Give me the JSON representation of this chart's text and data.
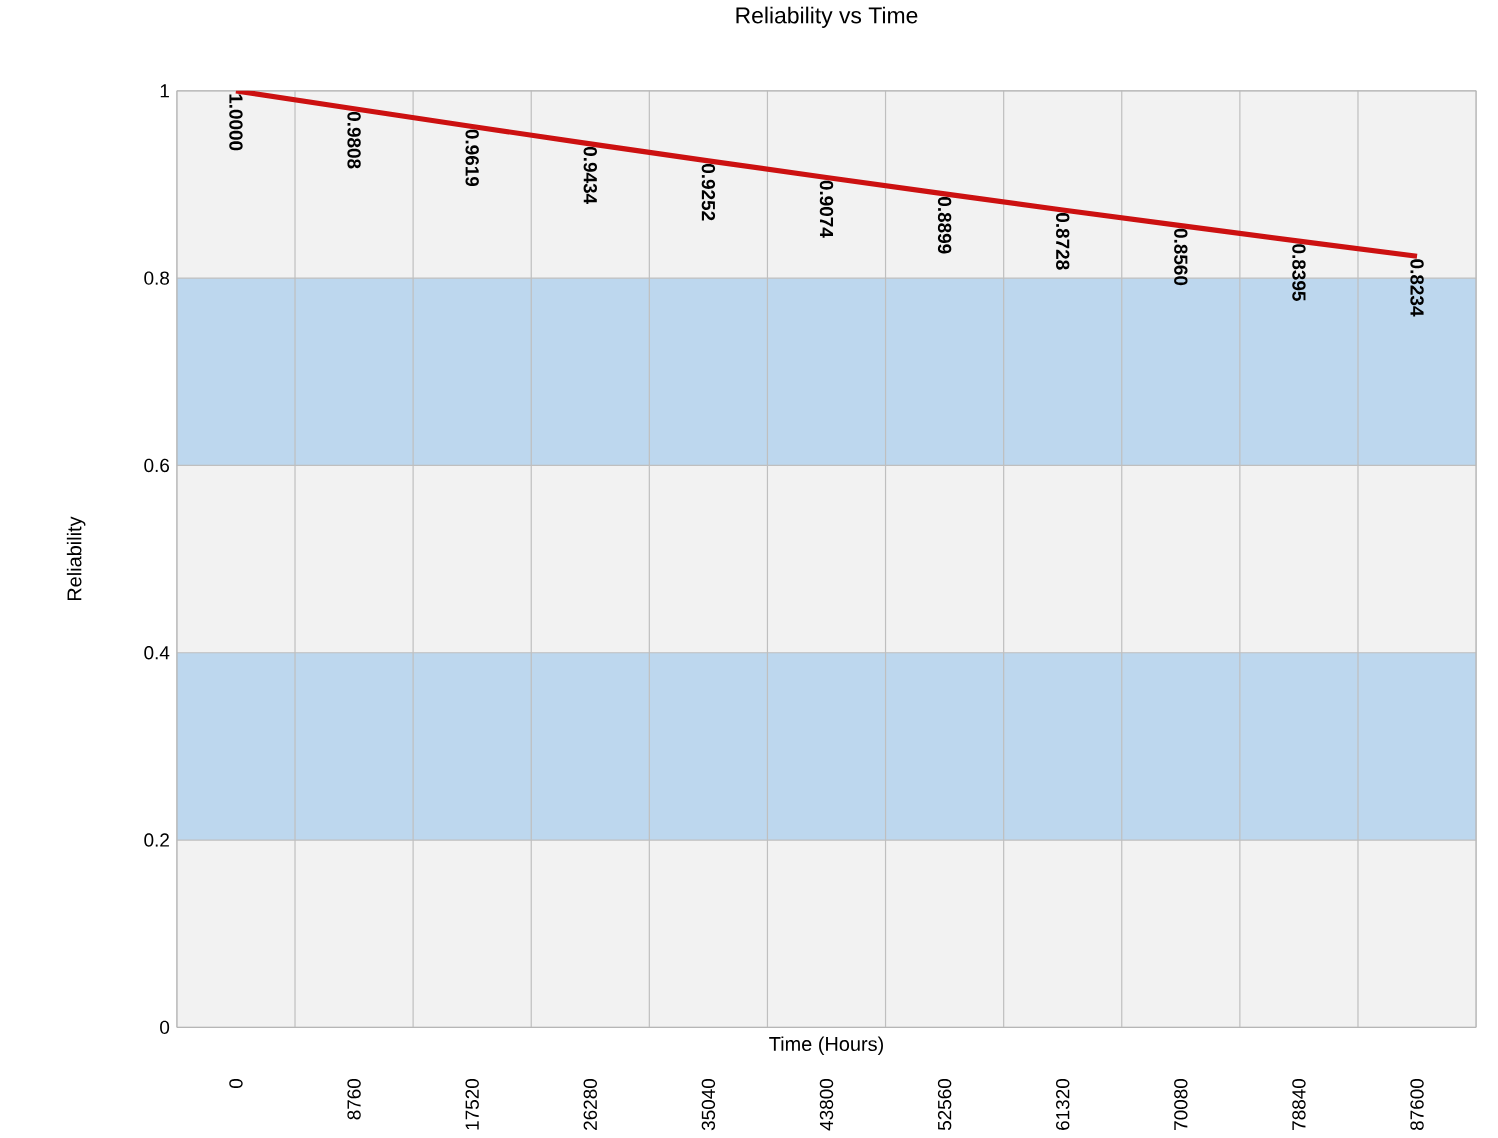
{
  "chart_data": {
    "type": "line",
    "title": "Reliability vs Time",
    "xlabel": "Time (Hours)",
    "ylabel": "Reliability",
    "categories": [
      "0",
      "8760",
      "17520",
      "26280",
      "35040",
      "43800",
      "52560",
      "61320",
      "70080",
      "78840",
      "87600"
    ],
    "values": [
      1.0,
      0.9808,
      0.9619,
      0.9434,
      0.9252,
      0.9074,
      0.8899,
      0.8728,
      0.856,
      0.8395,
      0.8234
    ],
    "value_labels": [
      "1.0000",
      "0.9808",
      "0.9619",
      "0.9434",
      "0.9252",
      "0.9074",
      "0.8899",
      "0.8728",
      "0.8560",
      "0.8395",
      "0.8234"
    ],
    "color": "#cc1111",
    "ylim": [
      0,
      1
    ],
    "yticks": [
      0,
      0.2,
      0.4,
      0.6,
      0.8,
      1
    ],
    "grid": true,
    "bands": [
      {
        "axis": "y",
        "from": 0.2,
        "to": 0.4,
        "color": "#bdd7ee"
      },
      {
        "axis": "y",
        "from": 0.6,
        "to": 0.8,
        "color": "#bdd7ee"
      }
    ]
  }
}
